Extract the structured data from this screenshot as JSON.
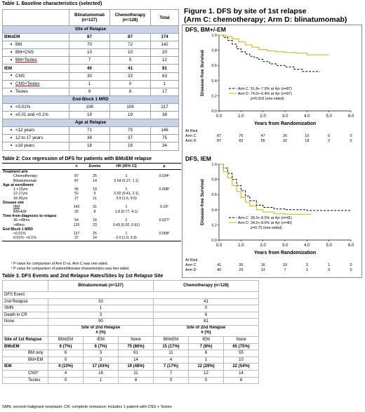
{
  "table1": {
    "caption": "Table 1. Baseline characteristics (selected)",
    "headers": {
      "blina": "Blinatumomab",
      "blina_n": "(n=127)",
      "chemo": "Chemotherapy",
      "chemo_n": "(n=128)",
      "total": "Total"
    },
    "rows": [
      {
        "type": "section",
        "label": "Site of Relapse"
      },
      {
        "type": "group",
        "label": "BM±EM",
        "v1": "87",
        "v2": "87",
        "v3": "174"
      },
      {
        "type": "bullet",
        "label": "BM",
        "v1": "70",
        "v2": "72",
        "v3": "142"
      },
      {
        "type": "bullet",
        "label": "BM+CNS",
        "v1": "10",
        "v2": "10",
        "v3": "20"
      },
      {
        "type": "bullet",
        "label": "BM+Testes",
        "v1": "7",
        "v2": "5",
        "v3": "12",
        "underline": true
      },
      {
        "type": "group",
        "label": "IEM",
        "v1": "40",
        "v2": "41",
        "v3": "81"
      },
      {
        "type": "bullet",
        "label": "CNS",
        "v1": "30",
        "v2": "33",
        "v3": "63"
      },
      {
        "type": "bullet",
        "label": "CNS+Testes",
        "v1": "1",
        "v2": "0",
        "v3": "1",
        "underline": true
      },
      {
        "type": "bullet",
        "label": "Testes",
        "v1": "9",
        "v2": "8",
        "v3": "17"
      },
      {
        "type": "section",
        "label": "End-Block 1 MRD"
      },
      {
        "type": "bullet",
        "label": "<0.01%",
        "v1": "108",
        "v2": "109",
        "v3": "217"
      },
      {
        "type": "bullet",
        "label": "≥0.01 and <0.1%",
        "v1": "19",
        "v2": "19",
        "v3": "38"
      },
      {
        "type": "section",
        "label": "Age at Relapse"
      },
      {
        "type": "bullet",
        "label": "<12 years",
        "v1": "71",
        "v2": "75",
        "v3": "146"
      },
      {
        "type": "bullet",
        "label": "12 to 17 years",
        "v1": "38",
        "v2": "37",
        "v3": "75"
      },
      {
        "type": "bullet",
        "label": "≥18 years",
        "v1": "18",
        "v2": "16",
        "v3": "34"
      }
    ]
  },
  "table2": {
    "caption": "Table 2: Cox regression of DFS for patients with BM±EM relapse",
    "headers": {
      "c1": "",
      "c2": "n",
      "c3": "Events",
      "c4": "HR (95% CI)",
      "c5": "p"
    },
    "rows": [
      {
        "type": "group",
        "label": "Treatment arm"
      },
      {
        "type": "item",
        "label": "Chemotherapy",
        "n": "87",
        "e": "25",
        "hr": "1",
        "p": "0.034¹"
      },
      {
        "type": "item",
        "label": "Blinatumomab",
        "n": "87",
        "e": "14",
        "hr": "0.54 (0.27, 1.1)",
        "p": ""
      },
      {
        "type": "group",
        "label": "Age at enrollment"
      },
      {
        "type": "item",
        "label": "1-<12yrs",
        "n": "95",
        "e": "19",
        "hr": "1",
        "p": "0.008²"
      },
      {
        "type": "item",
        "label": "12-17yrs",
        "n": "52",
        "e": "9",
        "hr": "0.92 (0.41, 2.1)",
        "p": ""
      },
      {
        "type": "item",
        "label": "18-30yrs",
        "n": "27",
        "e": "11",
        "hr": "3.9 (1.6, 9.5)",
        "p": ""
      },
      {
        "type": "group",
        "label": "Disease site"
      },
      {
        "type": "item",
        "label": "IBM",
        "n": "142",
        "e": "31",
        "hr": "1",
        "p": "0.19²",
        "underline": true
      },
      {
        "type": "item",
        "label": "BM+EM",
        "n": "32",
        "e": "8",
        "hr": "1.8 (0.77, 4.1)",
        "p": ""
      },
      {
        "type": "group",
        "label": "Time from diagnosis to relapse"
      },
      {
        "type": "item",
        "label": "36-<48mo",
        "n": "54",
        "e": "16",
        "hr": "1",
        "p": "0.027²"
      },
      {
        "type": "item",
        "label": ">48mo",
        "n": "120",
        "e": "23",
        "hr": "0.43 (0.20, 0.91)",
        "p": ""
      },
      {
        "type": "group",
        "label": "End Block 1 MRD"
      },
      {
        "type": "item",
        "label": "<0.01%",
        "n": "137",
        "e": "25",
        "hr": "1",
        "p": "0.058²"
      },
      {
        "type": "item",
        "label": "0.01%- <0.1%",
        "n": "37",
        "e": "14",
        "hr": "2.0 (1.0, 3.9)",
        "p": ""
      }
    ],
    "footnotes": [
      "¹ P value for comparison of Arm D vs. Arm C was one-sided.",
      "² P value for comparison of patient/disease characteristics was two-sided."
    ]
  },
  "table3": {
    "caption": "Table 3. DFS Events and 2nd Relapse Rates/Sites by 1st Relapse Site",
    "headers": {
      "blina": "Blinatumomab (n=127)",
      "chemo": "Chemotherapy (n=128)"
    },
    "dfs_label": "DFS Event",
    "dfs_rows": [
      {
        "label": "2nd Relapse",
        "b": "33",
        "c": "41"
      },
      {
        "label": "SMN",
        "b": "1",
        "c": "0"
      },
      {
        "label": "Death in CR",
        "b": "3",
        "c": "6"
      },
      {
        "label": "None",
        "b": "90",
        "c": "81"
      }
    ],
    "site2_header": "Site of 2nd Relapse",
    "site2_unit": "# (%)",
    "site1_label": "Site of 1st Relapse",
    "sub_headers": [
      "BM±EM",
      "IEM",
      "None",
      "BM±EM",
      "IEM",
      "None"
    ],
    "site_rows": [
      {
        "label": "BM±EM",
        "bold": true,
        "vals": [
          "6 (7%)",
          "6 (7%)",
          "75 (86%)",
          "15 (17%)",
          "7 (8%)",
          "65 (75%)"
        ]
      },
      {
        "label": "BM only",
        "bold": false,
        "vals": [
          "6",
          "3",
          "61",
          "11",
          "6",
          "55"
        ]
      },
      {
        "label": "BM+EM",
        "bold": false,
        "vals": [
          "0",
          "3",
          "14",
          "4",
          "1",
          "10"
        ]
      },
      {
        "label": "IEM",
        "bold": true,
        "vals": [
          "4 (10%)",
          "17 (43%)",
          "19 (48%)",
          "7 (17%)",
          "12 (29%)",
          "22 (54%)"
        ]
      },
      {
        "label": "CNS*",
        "bold": false,
        "vals": [
          "4",
          "16",
          "11",
          "7",
          "12",
          "14"
        ]
      },
      {
        "label": "Testes",
        "bold": false,
        "vals": [
          "0",
          "1",
          "8",
          "0",
          "0",
          "8"
        ]
      }
    ],
    "footnote": "SMN: second malignant neoplasm; CR: complete remission; includes 1 patient with CNS + Testes"
  },
  "figure": {
    "title_line1": "Figure 1. DFS by site of 1st relapse",
    "title_line2": "(Arm C: chemotherapy; Arm D: blinatumomab)"
  },
  "chart_data": [
    {
      "type": "line",
      "title": "DFS, BM+/-EM",
      "xlabel": "Years from Randomization",
      "ylabel": "Disease-free Survival",
      "xlim": [
        0,
        6
      ],
      "ylim": [
        0,
        1
      ],
      "xticks": [
        "0.0",
        "1.0",
        "2.0",
        "3.0",
        "4.0",
        "5.0",
        "6.0"
      ],
      "yticks": [
        "0.0",
        "0.2",
        "0.4",
        "0.6",
        "0.8",
        "1.0"
      ],
      "legend": [
        {
          "key": "Arm C",
          "text": "51.8+-7.9% at 4yr (n=87)"
        },
        {
          "key": "Arm D",
          "text": "74.0+-6.4% at 4yr (n=87)"
        },
        {
          "key": "",
          "text": "p=0.016 (one-sided)"
        }
      ],
      "series": [
        {
          "name": "Arm C",
          "color": "#000000",
          "dash": "3,2",
          "points": [
            [
              0,
              1
            ],
            [
              0.2,
              0.97
            ],
            [
              0.4,
              0.93
            ],
            [
              0.6,
              0.88
            ],
            [
              0.8,
              0.82
            ],
            [
              1.0,
              0.78
            ],
            [
              1.2,
              0.75
            ],
            [
              1.4,
              0.72
            ],
            [
              1.6,
              0.7
            ],
            [
              1.8,
              0.68
            ],
            [
              2.0,
              0.65
            ],
            [
              2.3,
              0.62
            ],
            [
              2.6,
              0.6
            ],
            [
              3.0,
              0.58
            ],
            [
              3.4,
              0.55
            ],
            [
              3.8,
              0.52
            ],
            [
              4.2,
              0.52
            ],
            [
              4.6,
              0.52
            ]
          ]
        },
        {
          "name": "Arm D",
          "color": "#c8b400",
          "dash": "",
          "points": [
            [
              0,
              1
            ],
            [
              0.3,
              0.98
            ],
            [
              0.6,
              0.95
            ],
            [
              0.9,
              0.91
            ],
            [
              1.2,
              0.87
            ],
            [
              1.5,
              0.84
            ],
            [
              1.8,
              0.81
            ],
            [
              2.2,
              0.79
            ],
            [
              2.6,
              0.78
            ],
            [
              3.0,
              0.77
            ],
            [
              3.5,
              0.76
            ],
            [
              4.0,
              0.74
            ],
            [
              4.5,
              0.74
            ],
            [
              5.0,
              0.74
            ]
          ]
        }
      ],
      "at_risk_label": "At Risk",
      "at_risk": [
        {
          "arm": "Arm C",
          "counts": [
            "87",
            "76",
            "47",
            "26",
            "10",
            "0",
            "0"
          ]
        },
        {
          "arm": "Arm D",
          "counts": [
            "87",
            "82",
            "55",
            "32",
            "18",
            "2",
            "0"
          ]
        }
      ]
    },
    {
      "type": "line",
      "title": "DFS, IEM",
      "xlabel": "Years from Randomization",
      "ylabel": "Disease-free Survival",
      "xlim": [
        0,
        6
      ],
      "ylim": [
        0,
        1
      ],
      "xticks": [
        "0.0",
        "1.0",
        "2.0",
        "3.0",
        "4.0",
        "5.0",
        "6.0"
      ],
      "yticks": [
        "0.0",
        "0.2",
        "0.4",
        "0.6",
        "0.8",
        "1.0"
      ],
      "legend": [
        {
          "key": "Arm C",
          "text": "39.3+-8.5% at 4yr (n=41)"
        },
        {
          "key": "Arm D",
          "text": "34.2+-8.6% at 4yr (n=40)"
        },
        {
          "key": "",
          "text": "p=0.73 (one-sided)"
        }
      ],
      "series": [
        {
          "name": "Arm C",
          "color": "#000000",
          "dash": "3,2",
          "points": [
            [
              0,
              1
            ],
            [
              0.2,
              0.95
            ],
            [
              0.4,
              0.88
            ],
            [
              0.6,
              0.8
            ],
            [
              0.8,
              0.72
            ],
            [
              1.0,
              0.65
            ],
            [
              1.2,
              0.58
            ],
            [
              1.4,
              0.52
            ],
            [
              1.7,
              0.46
            ],
            [
              2.0,
              0.43
            ],
            [
              2.5,
              0.41
            ],
            [
              3.0,
              0.4
            ],
            [
              4.0,
              0.39
            ],
            [
              5.0,
              0.39
            ],
            [
              6.0,
              0.39
            ]
          ]
        },
        {
          "name": "Arm D",
          "color": "#c8b400",
          "dash": "",
          "points": [
            [
              0,
              1
            ],
            [
              0.2,
              0.9
            ],
            [
              0.4,
              0.82
            ],
            [
              0.6,
              0.72
            ],
            [
              0.8,
              0.64
            ],
            [
              1.0,
              0.56
            ],
            [
              1.2,
              0.5
            ],
            [
              1.4,
              0.45
            ],
            [
              1.7,
              0.4
            ],
            [
              2.0,
              0.37
            ],
            [
              2.5,
              0.35
            ],
            [
              3.0,
              0.34
            ],
            [
              3.5,
              0.34
            ],
            [
              4.2,
              0.34
            ]
          ]
        }
      ],
      "at_risk_label": "At Risk",
      "at_risk": [
        {
          "arm": "Arm C",
          "counts": [
            "41",
            "35",
            "16",
            "10",
            "3",
            "1",
            "0"
          ]
        },
        {
          "arm": "Arm D",
          "counts": [
            "40",
            "29",
            "13",
            "7",
            "1",
            "0",
            "0"
          ]
        }
      ]
    }
  ]
}
